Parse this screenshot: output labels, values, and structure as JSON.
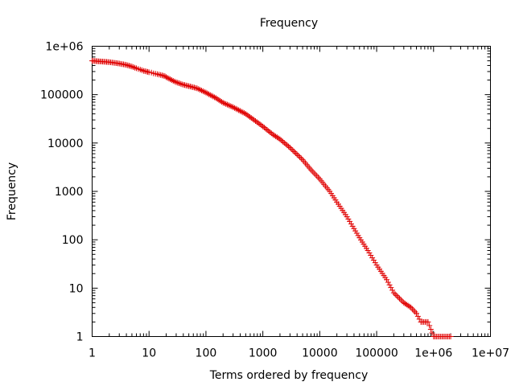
{
  "chart_data": {
    "type": "scatter",
    "title": "Frequency",
    "xlabel": "Terms ordered by frequency",
    "ylabel": "Frequency",
    "xscale": "log",
    "yscale": "log",
    "xlim": [
      1,
      10000000
    ],
    "ylim": [
      1,
      1000000
    ],
    "grid": false,
    "legend": "none",
    "marker": "+",
    "color": "#e00000",
    "x_ticks": [
      1,
      10,
      100,
      1000,
      10000,
      100000,
      1000000,
      10000000
    ],
    "x_tick_labels": [
      "1",
      "10",
      "100",
      "1000",
      "10000",
      "100000",
      "1e+06",
      "1e+07"
    ],
    "y_ticks": [
      1,
      10,
      100,
      1000,
      10000,
      100000,
      1000000
    ],
    "y_tick_labels": [
      "1",
      "10",
      "100",
      "1000",
      "10000",
      "100000",
      "1e+06"
    ],
    "series": [
      {
        "points": [
          [
            1,
            500000
          ],
          [
            2,
            470000
          ],
          [
            3,
            440000
          ],
          [
            4,
            410000
          ],
          [
            5,
            380000
          ],
          [
            6,
            350000
          ],
          [
            7,
            330000
          ],
          [
            8,
            310000
          ],
          [
            9,
            300000
          ],
          [
            10,
            290000
          ],
          [
            11,
            285000
          ],
          [
            12,
            275000
          ],
          [
            13,
            270000
          ],
          [
            14,
            265000
          ],
          [
            15,
            260000
          ],
          [
            16,
            255000
          ],
          [
            17,
            250000
          ],
          [
            18,
            245000
          ],
          [
            19,
            240000
          ],
          [
            20,
            230000
          ],
          [
            25,
            200000
          ],
          [
            30,
            180000
          ],
          [
            40,
            160000
          ],
          [
            50,
            150000
          ],
          [
            70,
            135000
          ],
          [
            100,
            110000
          ],
          [
            150,
            85000
          ],
          [
            200,
            68000
          ],
          [
            300,
            55000
          ],
          [
            500,
            40000
          ],
          [
            700,
            30000
          ],
          [
            1000,
            22000
          ],
          [
            1500,
            15000
          ],
          [
            2000,
            12000
          ],
          [
            3000,
            8000
          ],
          [
            5000,
            4500
          ],
          [
            7000,
            2800
          ],
          [
            10000,
            1800
          ],
          [
            15000,
            1000
          ],
          [
            20000,
            600
          ],
          [
            30000,
            300
          ],
          [
            40000,
            170
          ],
          [
            50000,
            110
          ],
          [
            70000,
            60
          ],
          [
            100000,
            30
          ],
          [
            150000,
            15
          ],
          [
            200000,
            8
          ],
          [
            300000,
            5
          ],
          [
            400000,
            4
          ],
          [
            500000,
            3
          ],
          [
            600000,
            2
          ],
          [
            800000,
            2
          ],
          [
            1000000,
            1
          ],
          [
            1500000,
            1
          ],
          [
            2000000,
            1
          ]
        ]
      }
    ]
  }
}
